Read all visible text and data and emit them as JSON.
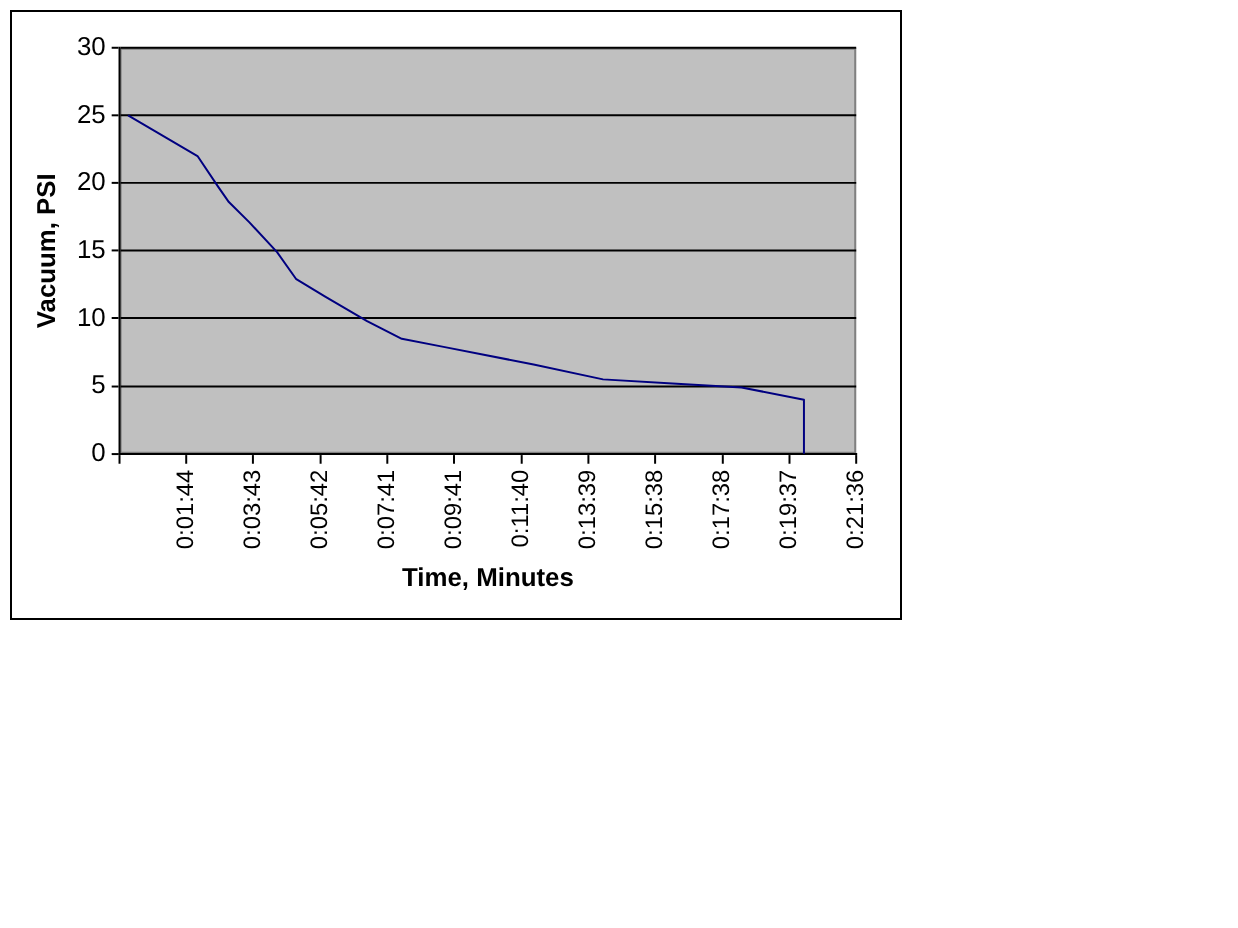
{
  "chart_data": {
    "type": "line",
    "xlabel": "Time, Minutes",
    "ylabel": "Vacuum, PSI",
    "x": [
      0,
      2.06,
      2.68,
      2.99,
      3.6,
      4.42,
      4.99,
      5.86,
      7.09,
      8.12,
      9.36,
      12.03,
      14.09,
      16.15,
      18.2,
      20.05,
      20.05
    ],
    "series": [
      {
        "color": "#000080",
        "values": [
          25,
          22,
          19.7,
          18.6,
          17.1,
          14.9,
          12.9,
          11.6,
          9.8,
          8.5,
          7.9,
          6.6,
          5.5,
          5.2,
          4.9,
          4,
          0
        ]
      }
    ],
    "xlim": [
      -0.25,
      21.6
    ],
    "xticks": [
      {
        "value": -0.25,
        "label": null
      },
      {
        "value": 1.7333,
        "label": "0:01:44"
      },
      {
        "value": 3.7167,
        "label": "0:03:43"
      },
      {
        "value": 5.7,
        "label": "0:05:42"
      },
      {
        "value": 7.6833,
        "label": "0:07:41"
      },
      {
        "value": 9.6833,
        "label": "0:09:41"
      },
      {
        "value": 11.6667,
        "label": "0:11:40"
      },
      {
        "value": 13.65,
        "label": "0:13:39"
      },
      {
        "value": 15.6333,
        "label": "0:15:38"
      },
      {
        "value": 17.6333,
        "label": "0:17:38"
      },
      {
        "value": 19.6167,
        "label": "0:19:37"
      },
      {
        "value": 21.6,
        "label": "0:21:36"
      }
    ],
    "ylim": [
      0,
      30
    ],
    "yticks": [
      0,
      5,
      10,
      15,
      20,
      25,
      30
    ],
    "grid": "y",
    "legend": false,
    "marker": "none",
    "line_style": "solid"
  }
}
